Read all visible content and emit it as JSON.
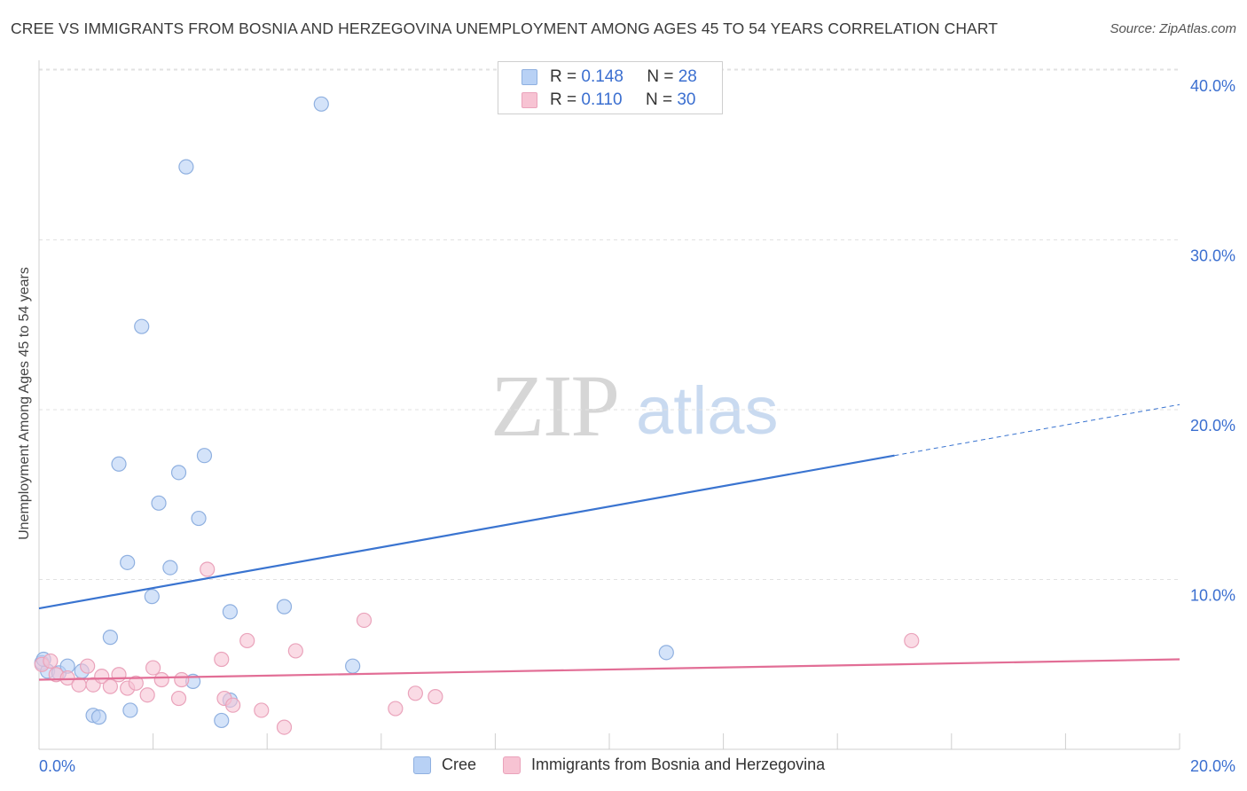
{
  "title": "CREE VS IMMIGRANTS FROM BOSNIA AND HERZEGOVINA UNEMPLOYMENT AMONG AGES 45 TO 54 YEARS CORRELATION CHART",
  "source": "Source: ZipAtlas.com",
  "watermark": {
    "zip": "ZIP",
    "atlas": "atlas"
  },
  "colors": {
    "blue_fill": "#b8d1f5",
    "blue_stroke": "#8fb0e0",
    "blue_line": "#3a74d0",
    "pink_fill": "#f7c3d3",
    "pink_stroke": "#eaa3bb",
    "pink_line": "#e26e96",
    "tick_text": "#3b6fd0",
    "grid": "#e2e2e2"
  },
  "stats": [
    {
      "r_label": "R =",
      "r_value": "0.148",
      "n_label": "N =",
      "n_value": "28",
      "color": "#b8d1f5",
      "border": "#8fb0e0"
    },
    {
      "r_label": "R =",
      "r_value": "0.110",
      "n_label": "N =",
      "n_value": "30",
      "color": "#f7c3d3",
      "border": "#eaa3bb"
    }
  ],
  "legend": [
    {
      "label": "Cree",
      "color": "#b8d1f5",
      "border": "#8fb0e0"
    },
    {
      "label": "Immigrants from Bosnia and Herzegovina",
      "color": "#f7c3d3",
      "border": "#eaa3bb"
    }
  ],
  "chart_data": {
    "type": "scatter",
    "title": "CREE VS IMMIGRANTS FROM BOSNIA AND HERZEGOVINA UNEMPLOYMENT AMONG AGES 45 TO 54 YEARS CORRELATION CHART",
    "xlabel": "",
    "ylabel": "Unemployment Among Ages 45 to 54 years",
    "xlim": [
      0,
      20
    ],
    "ylim": [
      0,
      40
    ],
    "x_ticks": [
      0,
      20
    ],
    "x_tick_labels": [
      "0.0%",
      "20.0%"
    ],
    "y_ticks": [
      10,
      20,
      30,
      40
    ],
    "y_tick_labels": [
      "10.0%",
      "20.0%",
      "30.0%",
      "40.0%"
    ],
    "grid": true,
    "legend_position": "top-center",
    "series": [
      {
        "name": "Cree",
        "r": 0.148,
        "n": 28,
        "points": [
          [
            0.05,
            5.1
          ],
          [
            0.15,
            4.6
          ],
          [
            0.35,
            4.5
          ],
          [
            0.5,
            4.9
          ],
          [
            0.75,
            4.6
          ],
          [
            0.95,
            2.0
          ],
          [
            1.05,
            1.9
          ],
          [
            1.25,
            6.6
          ],
          [
            1.4,
            16.8
          ],
          [
            1.55,
            11.0
          ],
          [
            1.6,
            2.3
          ],
          [
            1.8,
            24.9
          ],
          [
            1.98,
            9.0
          ],
          [
            2.1,
            14.5
          ],
          [
            2.3,
            10.7
          ],
          [
            2.45,
            16.3
          ],
          [
            2.58,
            34.3
          ],
          [
            2.7,
            4.0
          ],
          [
            2.8,
            13.6
          ],
          [
            2.9,
            17.3
          ],
          [
            3.2,
            1.7
          ],
          [
            3.35,
            8.1
          ],
          [
            3.35,
            2.9
          ],
          [
            4.3,
            8.4
          ],
          [
            4.95,
            38.0
          ],
          [
            5.5,
            4.9
          ],
          [
            11.0,
            5.7
          ],
          [
            0.08,
            5.3
          ]
        ],
        "trend": {
          "x": [
            0,
            15
          ],
          "y": [
            8.3,
            17.3
          ],
          "dashed_to": [
            20,
            20.3
          ]
        }
      },
      {
        "name": "Immigrants from Bosnia and Herzegovina",
        "r": 0.11,
        "n": 30,
        "points": [
          [
            0.05,
            5.0
          ],
          [
            0.2,
            5.2
          ],
          [
            0.3,
            4.4
          ],
          [
            0.5,
            4.2
          ],
          [
            0.7,
            3.8
          ],
          [
            0.85,
            4.9
          ],
          [
            0.95,
            3.8
          ],
          [
            1.1,
            4.3
          ],
          [
            1.25,
            3.7
          ],
          [
            1.4,
            4.4
          ],
          [
            1.55,
            3.6
          ],
          [
            1.7,
            3.9
          ],
          [
            1.9,
            3.2
          ],
          [
            2.0,
            4.8
          ],
          [
            2.15,
            4.1
          ],
          [
            2.45,
            3.0
          ],
          [
            2.5,
            4.1
          ],
          [
            2.95,
            10.6
          ],
          [
            3.2,
            5.3
          ],
          [
            3.25,
            3.0
          ],
          [
            3.4,
            2.6
          ],
          [
            3.65,
            6.4
          ],
          [
            3.9,
            2.3
          ],
          [
            4.3,
            1.3
          ],
          [
            4.5,
            5.8
          ],
          [
            5.7,
            7.6
          ],
          [
            6.25,
            2.4
          ],
          [
            6.6,
            3.3
          ],
          [
            6.95,
            3.1
          ],
          [
            15.3,
            6.4
          ]
        ],
        "trend": {
          "x": [
            0,
            20
          ],
          "y": [
            4.1,
            5.3
          ]
        }
      }
    ]
  }
}
